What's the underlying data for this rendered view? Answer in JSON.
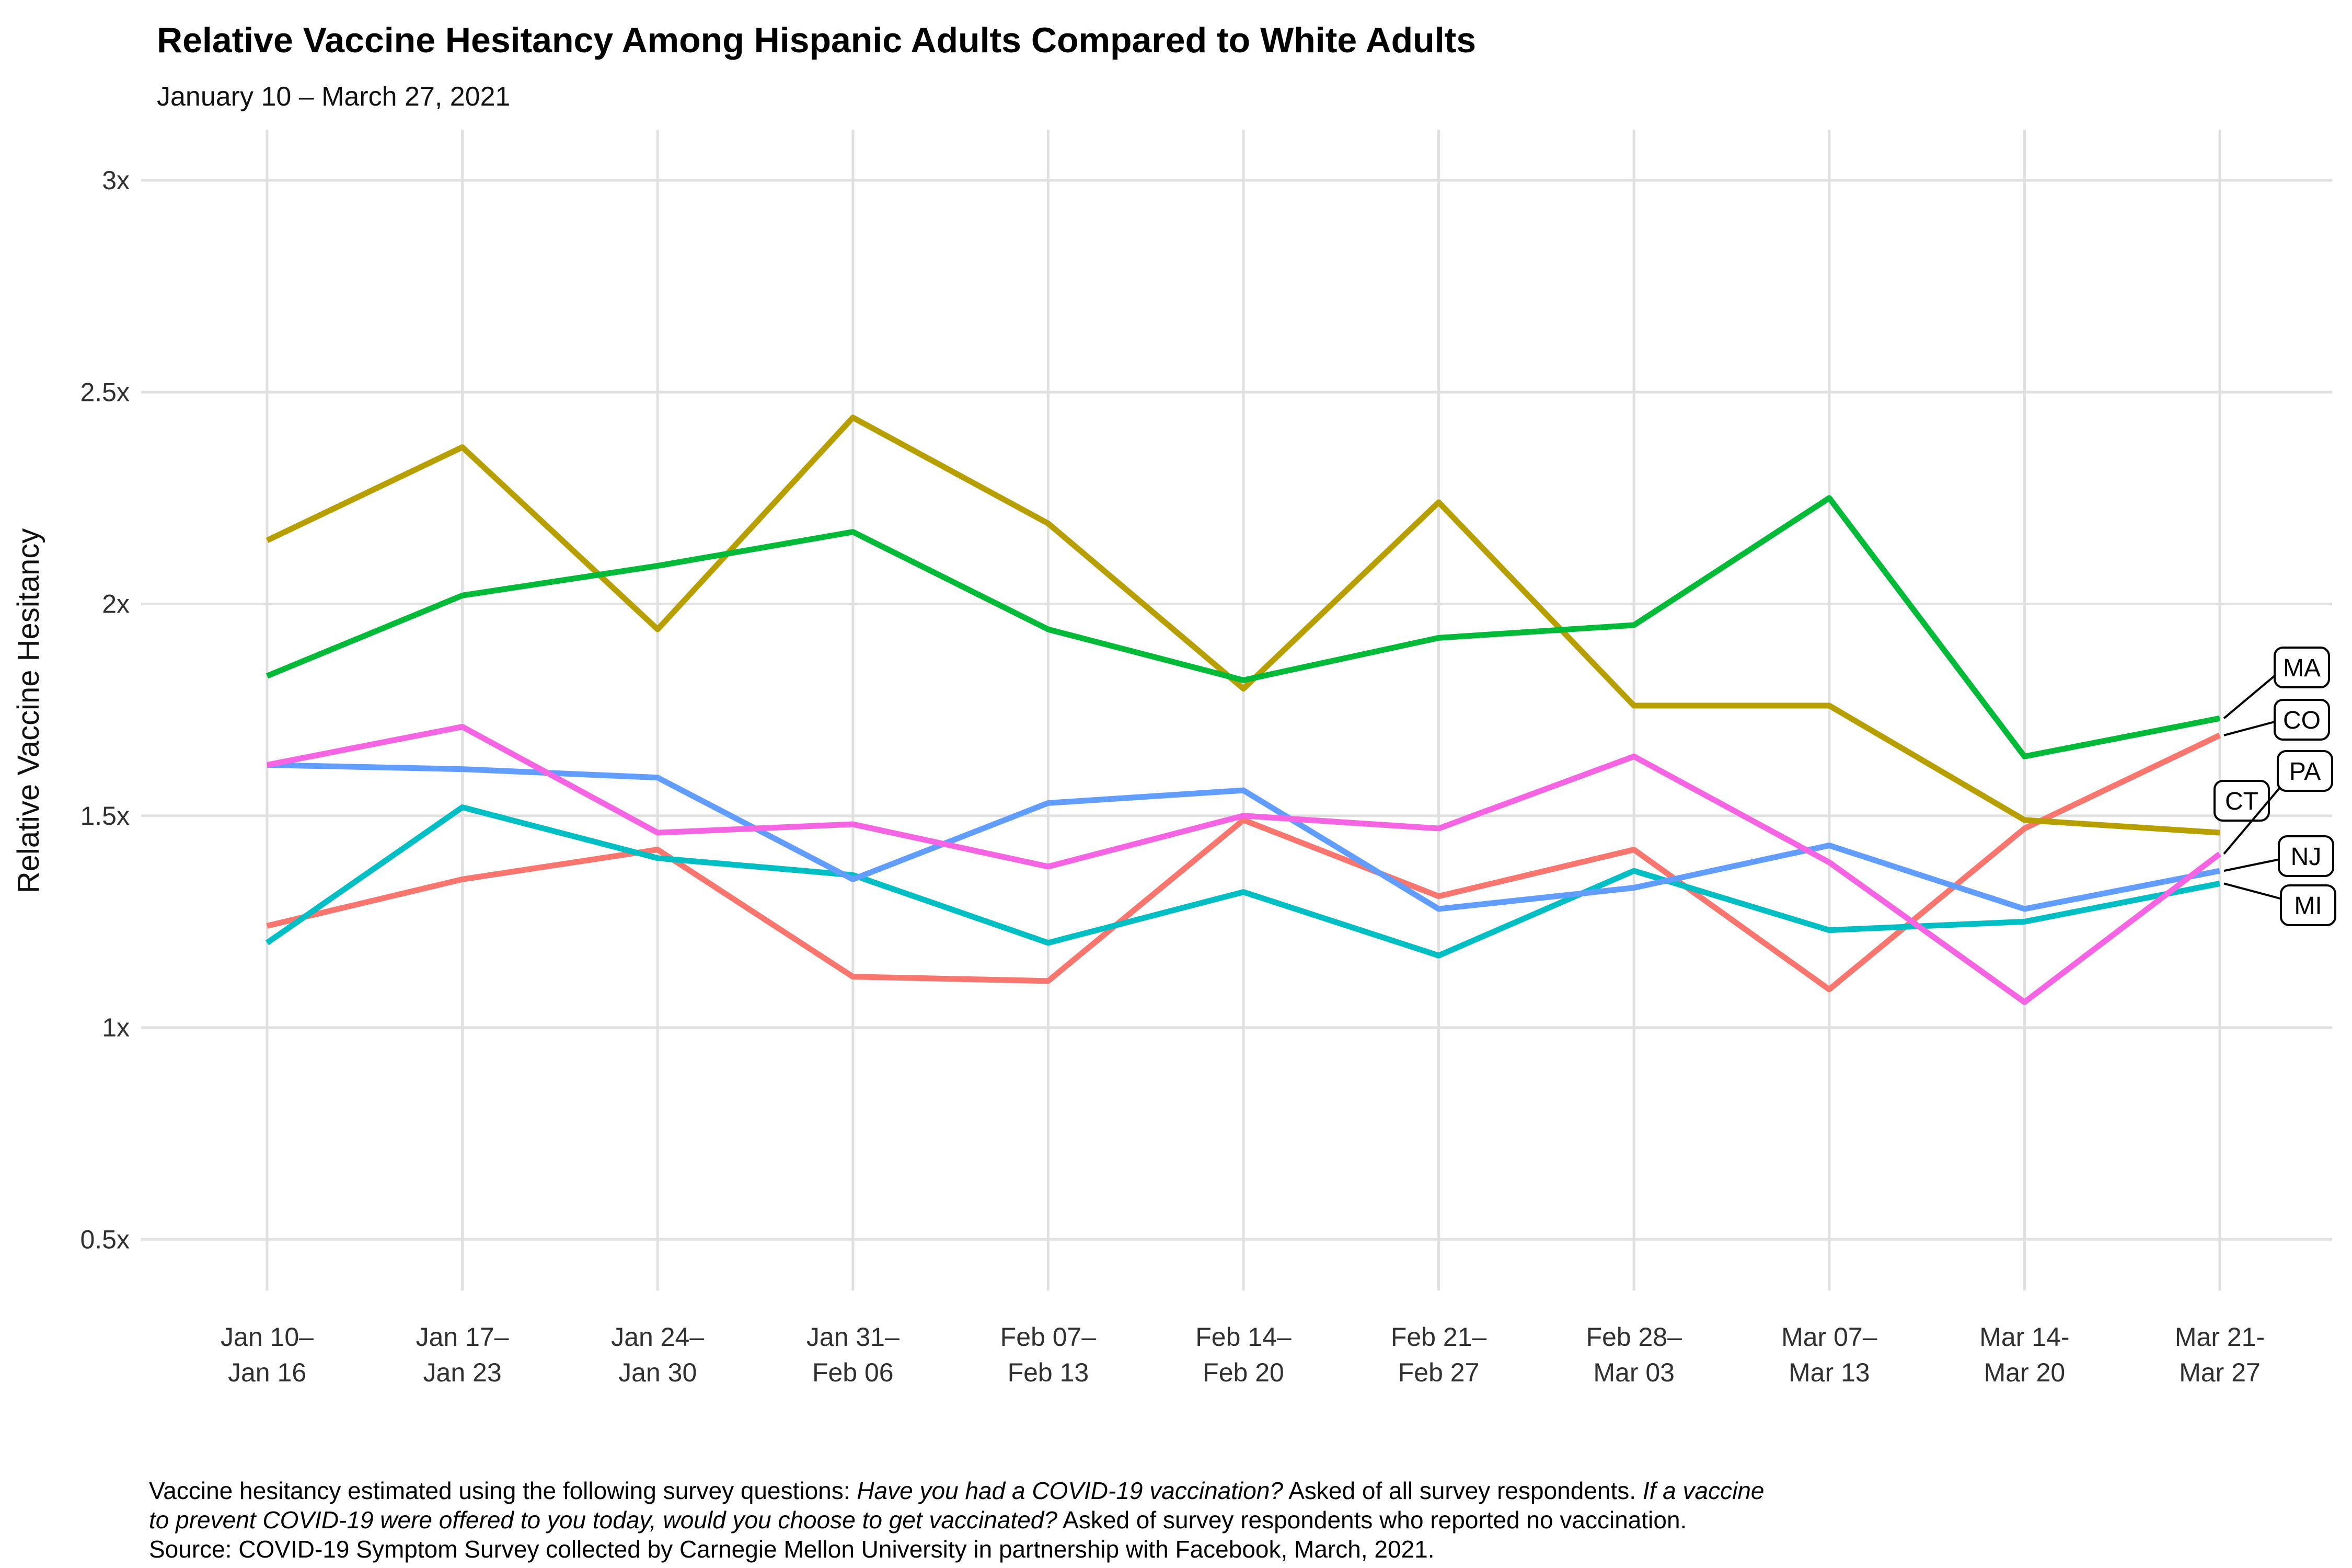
{
  "title": "Relative Vaccine Hesitancy Among Hispanic Adults Compared to White Adults",
  "subtitle": "January 10 – March 27, 2021",
  "y_axis_title": "Relative Vaccine Hesitancy",
  "footnote": {
    "lines": [
      [
        {
          "text": "Vaccine hesitancy estimated using the following survey questions: ",
          "italic": false
        },
        {
          "text": "Have you had a COVID-19 vaccination?",
          "italic": true
        },
        {
          "text": " Asked of all survey respondents. ",
          "italic": false
        },
        {
          "text": "If a vaccine",
          "italic": true
        }
      ],
      [
        {
          "text": "to prevent COVID-19 were offered to you today, would you choose to get vaccinated?",
          "italic": true
        },
        {
          "text": " Asked of survey respondents who reported no vaccination.",
          "italic": false
        }
      ],
      [
        {
          "text": "Source: COVID-19 Symptom Survey collected by Carnegie Mellon University in partnership with Facebook, March, 2021.",
          "italic": false
        }
      ]
    ]
  },
  "chart_data": {
    "type": "line",
    "title": "Relative Vaccine Hesitancy Among Hispanic Adults Compared to White Adults",
    "subtitle": "January 10 – March 27, 2021",
    "xlabel": "",
    "ylabel": "Relative Vaccine Hesitancy",
    "ylim": [
      0.5,
      3
    ],
    "grid": true,
    "legend_position": "right-edge-boxed-labels",
    "y_ticks": [
      {
        "value": 3,
        "label": "3x"
      },
      {
        "value": 2.5,
        "label": "2.5x"
      },
      {
        "value": 2,
        "label": "2x"
      },
      {
        "value": 1.5,
        "label": "1.5x"
      },
      {
        "value": 1,
        "label": "1x"
      },
      {
        "value": 0.5,
        "label": "0.5x"
      }
    ],
    "categories": [
      {
        "line1": "Jan 10–",
        "line2": "Jan 16"
      },
      {
        "line1": "Jan 17–",
        "line2": "Jan 23"
      },
      {
        "line1": "Jan 24–",
        "line2": "Jan 30"
      },
      {
        "line1": "Jan 31–",
        "line2": "Feb 06"
      },
      {
        "line1": "Feb 07–",
        "line2": "Feb 13"
      },
      {
        "line1": "Feb 14–",
        "line2": "Feb 20"
      },
      {
        "line1": "Feb 21–",
        "line2": "Feb 27"
      },
      {
        "line1": "Feb 28–",
        "line2": "Mar 03"
      },
      {
        "line1": "Mar 07–",
        "line2": "Mar 13"
      },
      {
        "line1": "Mar 14-",
        "line2": "Mar 20"
      },
      {
        "line1": "Mar 21-",
        "line2": "Mar 27"
      }
    ],
    "series": [
      {
        "name": "CO",
        "color": "#F8766D",
        "values": [
          1.24,
          1.35,
          1.42,
          1.12,
          1.11,
          1.49,
          1.31,
          1.42,
          1.09,
          1.47,
          1.69
        ]
      },
      {
        "name": "CT",
        "color": "#B79F00",
        "values": [
          2.15,
          2.37,
          1.94,
          2.44,
          2.19,
          1.8,
          2.24,
          1.76,
          1.76,
          1.49,
          1.46
        ]
      },
      {
        "name": "MA",
        "color": "#00BA38",
        "values": [
          1.83,
          2.02,
          2.09,
          2.17,
          1.94,
          1.82,
          1.92,
          1.95,
          2.25,
          1.64,
          1.73
        ]
      },
      {
        "name": "MI",
        "color": "#00BFC4",
        "values": [
          1.2,
          1.52,
          1.4,
          1.36,
          1.2,
          1.32,
          1.17,
          1.37,
          1.23,
          1.25,
          1.34
        ]
      },
      {
        "name": "NJ",
        "color": "#619CFF",
        "values": [
          1.62,
          1.61,
          1.59,
          1.35,
          1.53,
          1.56,
          1.28,
          1.33,
          1.43,
          1.28,
          1.37
        ]
      },
      {
        "name": "PA",
        "color": "#F564E3",
        "values": [
          1.62,
          1.71,
          1.46,
          1.48,
          1.38,
          1.5,
          1.47,
          1.64,
          1.39,
          1.06,
          1.41
        ]
      }
    ]
  }
}
